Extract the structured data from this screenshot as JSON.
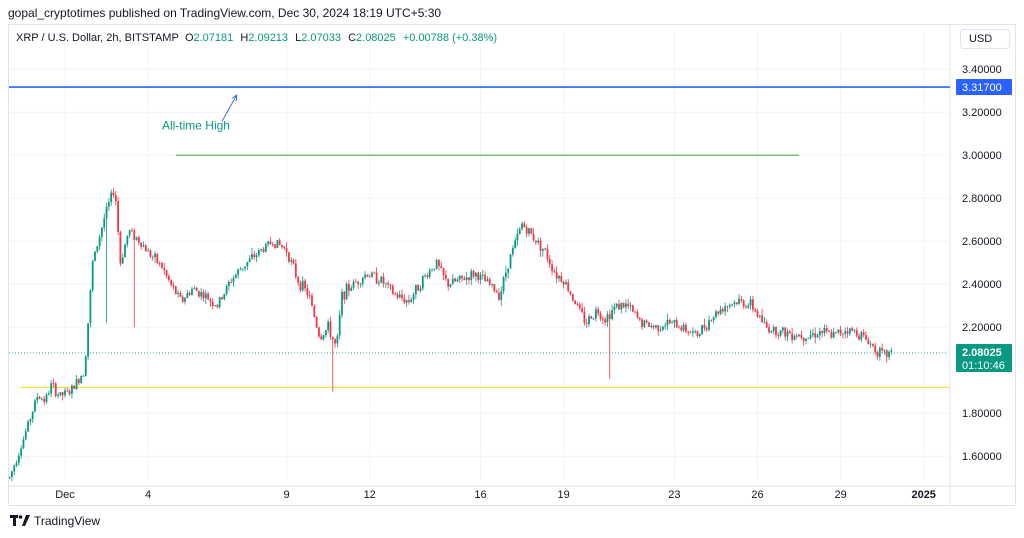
{
  "publisher": "gopal_cryptotimes published on TradingView.com, Dec 30, 2024 18:19 UTC+5:30",
  "legend": {
    "symbol": "XRP / U.S. Dollar, 2h, BITSTAMP",
    "o_label": "O",
    "o_value": "2.07181",
    "h_label": "H",
    "h_value": "2.09213",
    "l_label": "L",
    "l_value": "2.07033",
    "c_label": "C",
    "c_value": "2.08025",
    "change": "+0.00788 (+0.38%)"
  },
  "currency_button": "USD",
  "footer": {
    "brand": "TradingView"
  },
  "colors": {
    "up": "#089981",
    "down": "#f23645",
    "ath_line": "#2962ff",
    "green_line": "#4caf50",
    "yellow_line": "#f5e342",
    "annotation": "#089981"
  },
  "chart_data": {
    "type": "candlestick",
    "title": "",
    "ylim": [
      1.48,
      3.48
    ],
    "y_ticks": [
      {
        "value": 3.4,
        "label": "3.40000"
      },
      {
        "value": 3.2,
        "label": "3.20000"
      },
      {
        "value": 3.0,
        "label": "3.00000"
      },
      {
        "value": 2.8,
        "label": "2.80000"
      },
      {
        "value": 2.6,
        "label": "2.60000"
      },
      {
        "value": 2.4,
        "label": "2.40000"
      },
      {
        "value": 2.2,
        "label": "2.20000"
      },
      {
        "value": 1.8,
        "label": "1.80000"
      },
      {
        "value": 1.6,
        "label": "1.60000"
      }
    ],
    "x_ticks": [
      {
        "day": 1,
        "label": "Dec"
      },
      {
        "day": 4,
        "label": "4"
      },
      {
        "day": 9,
        "label": "9"
      },
      {
        "day": 12,
        "label": "12"
      },
      {
        "day": 16,
        "label": "16"
      },
      {
        "day": 19,
        "label": "19"
      },
      {
        "day": 23,
        "label": "23"
      },
      {
        "day": 26,
        "label": "26"
      },
      {
        "day": 29,
        "label": "29"
      },
      {
        "day": 32,
        "label": "2025"
      }
    ],
    "price_path": [
      [
        -1.0,
        1.5
      ],
      [
        -0.5,
        1.68
      ],
      [
        0.0,
        1.88
      ],
      [
        0.3,
        1.86
      ],
      [
        0.5,
        1.93
      ],
      [
        0.8,
        1.88
      ],
      [
        1.2,
        1.9
      ],
      [
        1.7,
        2.0
      ],
      [
        2.0,
        2.5
      ],
      [
        2.4,
        2.7
      ],
      [
        2.6,
        2.78
      ],
      [
        2.8,
        2.85
      ],
      [
        3.0,
        2.5
      ],
      [
        3.3,
        2.65
      ],
      [
        3.7,
        2.6
      ],
      [
        4.0,
        2.55
      ],
      [
        4.5,
        2.48
      ],
      [
        4.8,
        2.4
      ],
      [
        5.2,
        2.32
      ],
      [
        5.6,
        2.38
      ],
      [
        6.0,
        2.35
      ],
      [
        6.5,
        2.3
      ],
      [
        7.0,
        2.42
      ],
      [
        7.4,
        2.48
      ],
      [
        8.0,
        2.55
      ],
      [
        8.5,
        2.6
      ],
      [
        9.0,
        2.56
      ],
      [
        9.4,
        2.42
      ],
      [
        9.8,
        2.35
      ],
      [
        10.2,
        2.15
      ],
      [
        10.5,
        2.2
      ],
      [
        10.8,
        2.1
      ],
      [
        11.0,
        2.35
      ],
      [
        11.4,
        2.4
      ],
      [
        11.9,
        2.45
      ],
      [
        12.4,
        2.42
      ],
      [
        12.9,
        2.35
      ],
      [
        13.4,
        2.32
      ],
      [
        13.9,
        2.42
      ],
      [
        14.4,
        2.5
      ],
      [
        14.8,
        2.4
      ],
      [
        15.3,
        2.42
      ],
      [
        15.8,
        2.45
      ],
      [
        16.3,
        2.4
      ],
      [
        16.7,
        2.35
      ],
      [
        17.0,
        2.5
      ],
      [
        17.5,
        2.68
      ],
      [
        17.9,
        2.62
      ],
      [
        18.3,
        2.56
      ],
      [
        18.7,
        2.45
      ],
      [
        19.0,
        2.42
      ],
      [
        19.4,
        2.32
      ],
      [
        19.8,
        2.22
      ],
      [
        20.2,
        2.28
      ],
      [
        20.5,
        2.24
      ],
      [
        20.9,
        2.3
      ],
      [
        21.3,
        2.3
      ],
      [
        21.8,
        2.22
      ],
      [
        22.3,
        2.2
      ],
      [
        22.8,
        2.22
      ],
      [
        23.3,
        2.2
      ],
      [
        23.8,
        2.16
      ],
      [
        24.3,
        2.24
      ],
      [
        24.8,
        2.3
      ],
      [
        25.3,
        2.32
      ],
      [
        25.8,
        2.3
      ],
      [
        26.3,
        2.2
      ],
      [
        26.8,
        2.18
      ],
      [
        27.3,
        2.17
      ],
      [
        27.8,
        2.16
      ],
      [
        28.3,
        2.18
      ],
      [
        28.7,
        2.16
      ],
      [
        29.2,
        2.19
      ],
      [
        29.7,
        2.17
      ],
      [
        30.1,
        2.12
      ],
      [
        30.5,
        2.07
      ],
      [
        30.9,
        2.08025
      ]
    ],
    "spikes": [
      {
        "day": 2.5,
        "low": 2.22
      },
      {
        "day": 3.5,
        "low": 2.2
      },
      {
        "day": 10.7,
        "low": 1.9
      },
      {
        "day": 20.7,
        "low": 1.96
      }
    ],
    "horizontal_lines": [
      {
        "name": "ath",
        "value": 3.317,
        "from": -1.2,
        "to": 33.5
      },
      {
        "name": "green",
        "value": 3.0,
        "from": 5.0,
        "to": 27.5
      },
      {
        "name": "yellow",
        "value": 1.92,
        "from": -0.6,
        "to": 33.5
      }
    ],
    "annotation": {
      "text": "All-time High",
      "x": 4.5,
      "y": 3.12,
      "arrow_to": [
        7.2,
        3.28
      ]
    },
    "price_tags": [
      {
        "name": "ath",
        "value": 3.317,
        "label": "3.31700"
      },
      {
        "name": "last",
        "value": 2.08025,
        "label": "2.08025",
        "countdown": "01:10:46"
      }
    ]
  }
}
